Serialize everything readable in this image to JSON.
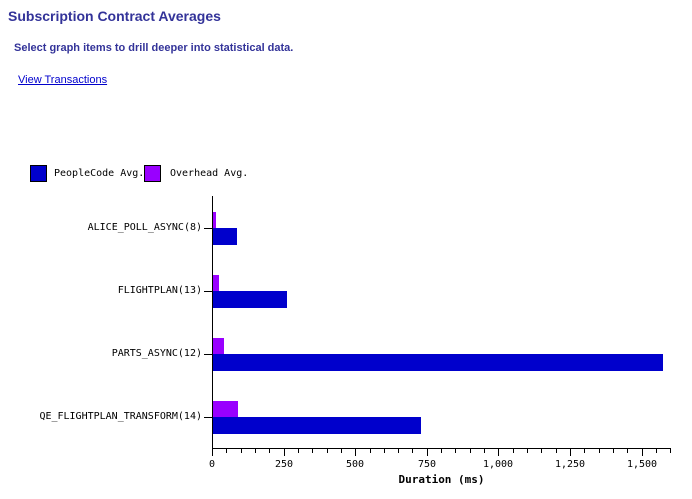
{
  "header": {
    "title": "Subscription Contract Averages",
    "subtitle": "Select graph items to drill deeper into statistical data.",
    "link_label": "View Transactions"
  },
  "colors": {
    "title_text": "#333399",
    "subtitle_text": "#333399",
    "link_text": "#0000CC",
    "peoplecode_bar": "#0000CC",
    "overhead_bar": "#9900FF",
    "axis": "#000000",
    "background": "#FFFFFF"
  },
  "legend": {
    "items": [
      {
        "label": "PeopleCode Avg.",
        "color": "#0000CC"
      },
      {
        "label": "Overhead Avg.",
        "color": "#9900FF"
      }
    ]
  },
  "chart_data": {
    "type": "bar",
    "orientation": "horizontal",
    "title": "Subscription Contract Averages",
    "xlabel": "Duration (ms)",
    "ylabel": "",
    "xlim": [
      0,
      1600
    ],
    "grid": false,
    "legend_position": "top-left",
    "minor_tick_interval": 50,
    "x_major_ticks": [
      {
        "value": 0,
        "label": "0"
      },
      {
        "value": 250,
        "label": "250"
      },
      {
        "value": 500,
        "label": "500"
      },
      {
        "value": 750,
        "label": "750"
      },
      {
        "value": 1000,
        "label": "1,000"
      },
      {
        "value": 1250,
        "label": "1,250"
      },
      {
        "value": 1500,
        "label": "1,500"
      }
    ],
    "categories": [
      "ALICE_POLL_ASYNC(8)",
      "FLIGHTPLAN(13)",
      "PARTS_ASYNC(12)",
      "QE_FLIGHTPLAN_TRANSFORM(14)"
    ],
    "series": [
      {
        "name": "PeopleCode Avg.",
        "color": "#0000CC",
        "values": [
          85,
          260,
          1570,
          725
        ]
      },
      {
        "name": "Overhead Avg.",
        "color": "#9900FF",
        "values": [
          10,
          20,
          38,
          87
        ]
      }
    ]
  }
}
